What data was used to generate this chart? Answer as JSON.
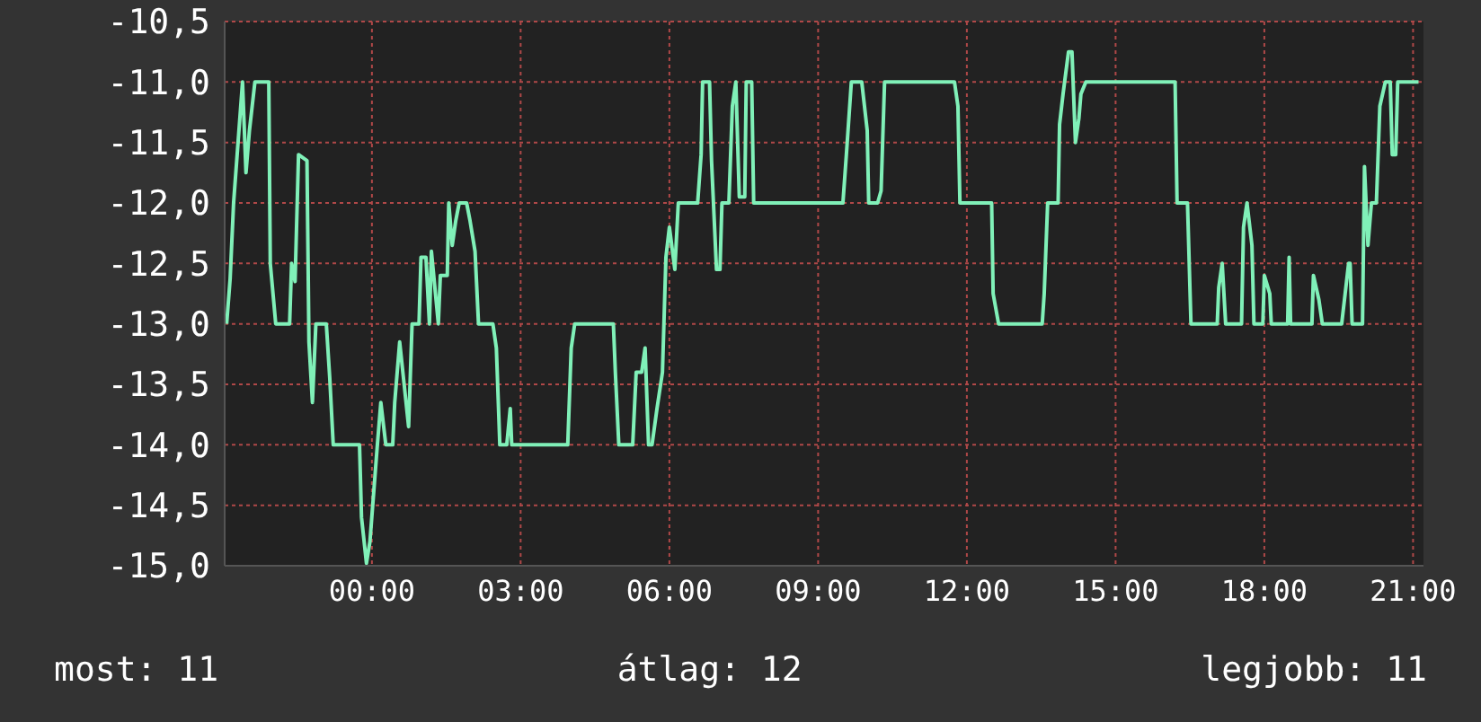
{
  "chart_data": {
    "type": "line",
    "x": [
      -2.93,
      -2.86,
      -2.79,
      -2.61,
      -2.54,
      -2.47,
      -2.36,
      -2.08,
      -2.05,
      -1.94,
      -1.66,
      -1.62,
      -1.55,
      -1.48,
      -1.31,
      -1.27,
      -1.2,
      -1.13,
      -0.92,
      -0.85,
      -0.78,
      -0.25,
      -0.21,
      -0.11,
      -0.04,
      0.11,
      0.18,
      0.28,
      0.42,
      0.46,
      0.56,
      0.74,
      0.81,
      0.95,
      0.99,
      1.09,
      1.16,
      1.2,
      1.34,
      1.38,
      1.52,
      1.55,
      1.62,
      1.69,
      1.76,
      1.91,
      1.98,
      2.08,
      2.15,
      2.44,
      2.51,
      2.58,
      2.72,
      2.79,
      2.82,
      3.95,
      4.02,
      4.09,
      4.87,
      4.91,
      4.98,
      5.05,
      5.26,
      5.33,
      5.44,
      5.51,
      5.58,
      5.65,
      5.75,
      5.86,
      5.93,
      6.0,
      6.11,
      6.18,
      6.57,
      6.64,
      6.67,
      6.81,
      6.85,
      6.95,
      7.02,
      7.06,
      7.2,
      7.27,
      7.34,
      7.41,
      7.52,
      7.55,
      7.66,
      7.7,
      9.5,
      9.57,
      9.67,
      9.88,
      9.99,
      10.02,
      10.2,
      10.27,
      10.34,
      11.75,
      11.82,
      11.86,
      12.5,
      12.53,
      12.64,
      13.52,
      13.56,
      13.63,
      13.84,
      13.87,
      13.94,
      14.05,
      14.12,
      14.19,
      14.26,
      14.3,
      14.4,
      16.2,
      16.24,
      16.45,
      16.52,
      17.05,
      17.08,
      17.15,
      17.22,
      17.54,
      17.58,
      17.65,
      17.75,
      17.79,
      17.97,
      18.0,
      18.11,
      18.14,
      18.47,
      18.5,
      18.53,
      18.96,
      18.99,
      19.1,
      19.17,
      19.56,
      19.63,
      19.7,
      19.73,
      19.77,
      19.98,
      20.02,
      20.09,
      20.16,
      20.26,
      20.33,
      20.44,
      20.54,
      20.58,
      20.65,
      20.69,
      21.11
    ],
    "series": [
      {
        "color": "#80f0b8",
        "values": [
          -13.0,
          -12.63,
          -12.0,
          -11.0,
          -11.75,
          -11.4,
          -11.0,
          -11.0,
          -12.5,
          -13.0,
          -13.0,
          -12.5,
          -12.65,
          -11.6,
          -11.65,
          -13.15,
          -13.65,
          -13.0,
          -13.0,
          -13.45,
          -14.0,
          -14.0,
          -14.6,
          -14.98,
          -14.8,
          -14.0,
          -13.65,
          -14.0,
          -14.0,
          -13.65,
          -13.15,
          -13.85,
          -13.0,
          -13.0,
          -12.45,
          -12.45,
          -13.0,
          -12.4,
          -13.0,
          -12.6,
          -12.6,
          -12.0,
          -12.35,
          -12.15,
          -12.0,
          -12.0,
          -12.15,
          -12.4,
          -13.0,
          -13.0,
          -13.2,
          -14.0,
          -14.0,
          -13.7,
          -14.0,
          -14.0,
          -13.2,
          -13.0,
          -13.0,
          -13.4,
          -14.0,
          -14.0,
          -14.0,
          -13.4,
          -13.4,
          -13.2,
          -14.0,
          -14.0,
          -13.7,
          -13.4,
          -12.45,
          -12.2,
          -12.55,
          -12.0,
          -12.0,
          -11.6,
          -11.0,
          -11.0,
          -11.65,
          -12.55,
          -12.55,
          -12.0,
          -12.0,
          -11.2,
          -11.0,
          -11.95,
          -11.95,
          -11.0,
          -11.0,
          -12.0,
          -12.0,
          -11.6,
          -11.0,
          -11.0,
          -11.4,
          -12.0,
          -12.0,
          -11.9,
          -11.0,
          -11.0,
          -11.2,
          -12.0,
          -12.0,
          -12.75,
          -13.0,
          -13.0,
          -12.75,
          -12.0,
          -12.0,
          -11.35,
          -11.1,
          -10.75,
          -10.75,
          -11.5,
          -11.3,
          -11.1,
          -11.0,
          -11.0,
          -12.0,
          -12.0,
          -13.0,
          -13.0,
          -12.7,
          -12.5,
          -13.0,
          -13.0,
          -12.2,
          -12.0,
          -12.35,
          -13.0,
          -13.0,
          -12.6,
          -12.75,
          -13.0,
          -13.0,
          -12.45,
          -13.0,
          -13.0,
          -12.6,
          -12.8,
          -13.0,
          -13.0,
          -12.75,
          -12.5,
          -12.5,
          -13.0,
          -13.0,
          -11.7,
          -12.35,
          -12.0,
          -12.0,
          -11.2,
          -11.0,
          -11.0,
          -11.6,
          -11.6,
          -11.0,
          -11.0
        ]
      }
    ],
    "xlim": [
      -2.97,
      21.21
    ],
    "xticks": [
      {
        "value": 0,
        "label": "00:00"
      },
      {
        "value": 3,
        "label": "03:00"
      },
      {
        "value": 6,
        "label": "06:00"
      },
      {
        "value": 9,
        "label": "09:00"
      },
      {
        "value": 12,
        "label": "12:00"
      },
      {
        "value": 15,
        "label": "15:00"
      },
      {
        "value": 18,
        "label": "18:00"
      },
      {
        "value": 21,
        "label": "21:00"
      }
    ],
    "ylim": [
      -15,
      -10.5
    ],
    "yticks": [
      {
        "value": -15,
        "label": "-15,0"
      },
      {
        "value": -14.5,
        "label": "-14,5"
      },
      {
        "value": -14,
        "label": "-14,0"
      },
      {
        "value": -13.5,
        "label": "-13,5"
      },
      {
        "value": -13,
        "label": "-13,0"
      },
      {
        "value": -12.5,
        "label": "-12,5"
      },
      {
        "value": -12,
        "label": "-12,0"
      },
      {
        "value": -11.5,
        "label": "-11,5"
      },
      {
        "value": -11,
        "label": "-11,0"
      },
      {
        "value": -10.5,
        "label": "-10,5"
      }
    ],
    "grid": true,
    "annotations": [
      "most: 11",
      "átlag: 12",
      "legjobb: 11"
    ]
  }
}
